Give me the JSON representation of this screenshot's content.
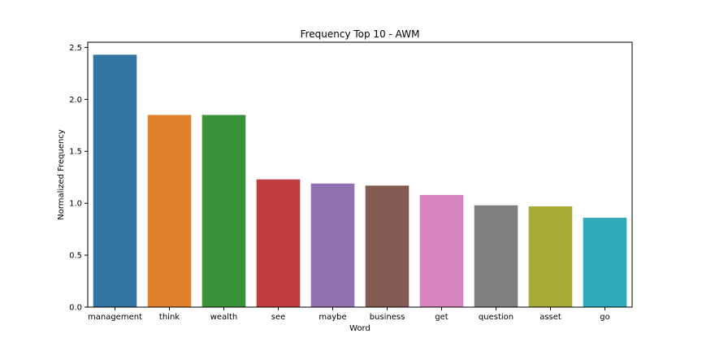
{
  "chart_data": {
    "type": "bar",
    "title": "Frequency Top 10 - AWM",
    "xlabel": "Word",
    "ylabel": "Normalized Frequency",
    "categories": [
      "management",
      "think",
      "wealth",
      "see",
      "maybe",
      "business",
      "get",
      "question",
      "asset",
      "go"
    ],
    "values": [
      2.43,
      1.85,
      1.85,
      1.23,
      1.19,
      1.17,
      1.08,
      0.98,
      0.97,
      0.86
    ],
    "colors": [
      "#3274a1",
      "#e1812c",
      "#3a923a",
      "#c03d3e",
      "#9372b2",
      "#845b53",
      "#d684bd",
      "#7f7f7f",
      "#a9aa35",
      "#2eaab8"
    ],
    "ylim": [
      0,
      2.55
    ],
    "yticks": [
      0.0,
      0.5,
      1.0,
      1.5,
      2.0,
      2.5
    ],
    "ytick_labels": [
      "0.0",
      "0.5",
      "1.0",
      "1.5",
      "2.0",
      "2.5"
    ],
    "grid": false,
    "legend": "none"
  }
}
